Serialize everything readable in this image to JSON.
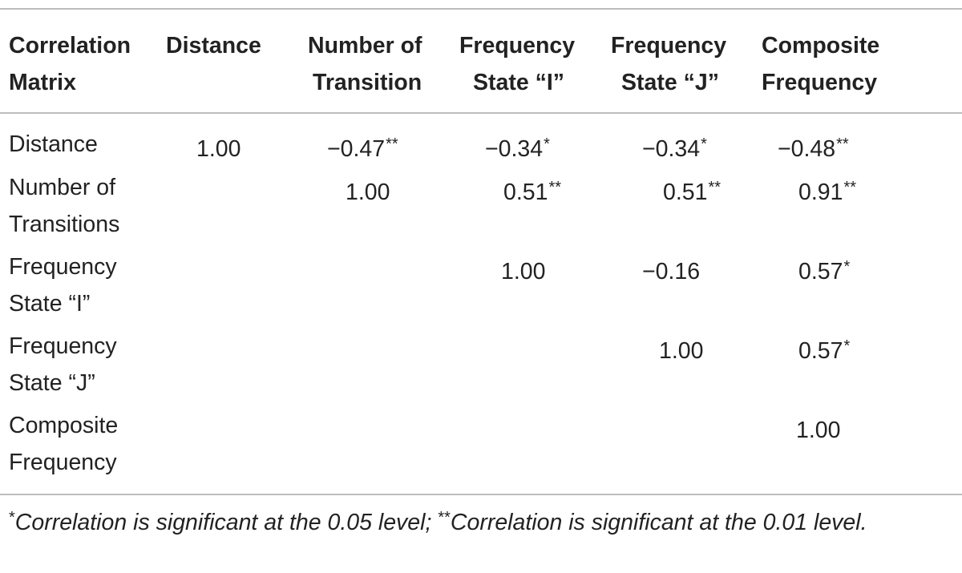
{
  "headers": [
    {
      "line1": "Correlation",
      "line2": "Matrix"
    },
    {
      "line1": "Distance",
      "line2": ""
    },
    {
      "line1": "Number of",
      "line2": "Transition"
    },
    {
      "line1": "Frequency",
      "line2": "State “I”"
    },
    {
      "line1": "Frequency",
      "line2": "State “J”"
    },
    {
      "line1": "Composite",
      "line2": "Frequency"
    }
  ],
  "rows": [
    {
      "label1": "Distance",
      "label2": "",
      "values": [
        {
          "num": "1.00",
          "sig": ""
        },
        {
          "num": "−0.47",
          "sig": "**"
        },
        {
          "num": "−0.34",
          "sig": "*"
        },
        {
          "num": "−0.34",
          "sig": "*"
        },
        {
          "num": "−0.48",
          "sig": "**"
        }
      ]
    },
    {
      "label1": "Number of",
      "label2": "Transitions",
      "values": [
        {
          "num": "1.00",
          "sig": ""
        },
        {
          "num": "0.51",
          "sig": "**"
        },
        {
          "num": "0.51",
          "sig": "**"
        },
        {
          "num": "0.91",
          "sig": "**"
        }
      ]
    },
    {
      "label1": "Frequency",
      "label2": "State “I”",
      "values": [
        {
          "num": "1.00",
          "sig": ""
        },
        {
          "num": "−0.16",
          "sig": ""
        },
        {
          "num": "0.57",
          "sig": "*"
        }
      ]
    },
    {
      "label1": "Frequency",
      "label2": "State “J”",
      "values": [
        {
          "num": "1.00",
          "sig": ""
        },
        {
          "num": "0.57",
          "sig": "*"
        }
      ]
    },
    {
      "label1": "Composite",
      "label2": "Frequency",
      "values": [
        {
          "num": "1.00",
          "sig": ""
        }
      ]
    }
  ],
  "footnote": {
    "mark1": "*",
    "text1": "Correlation is significant at the 0.05 level; ",
    "mark2": "**",
    "text2": "Correlation is significant at the 0.01 level."
  }
}
